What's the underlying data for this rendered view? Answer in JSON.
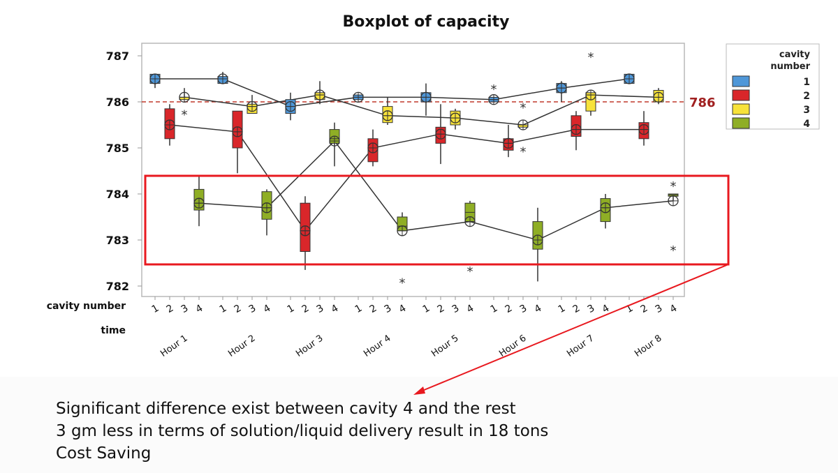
{
  "chart_data": {
    "type": "boxplot",
    "title": "Boxplot of capacity",
    "ylim": [
      782,
      787.3
    ],
    "yticks": [
      782,
      783,
      784,
      785,
      786,
      787
    ],
    "grid": false,
    "reference_line": {
      "value": 786,
      "label": "786",
      "color": "#c0392b"
    },
    "x_axis_rows": [
      {
        "label": "cavity number",
        "ticks": [
          "1",
          "2",
          "3",
          "4"
        ]
      },
      {
        "label": "time",
        "ticks": [
          "Hour 1",
          "Hour 2",
          "Hour 3",
          "Hour 4",
          "Hour 5",
          "Hour 6",
          "Hour 7",
          "Hour 8"
        ]
      }
    ],
    "legend": {
      "title_line1": "cavity",
      "title_line2": "number",
      "placement": "right",
      "entries": [
        {
          "label": "1",
          "color": "#4f97d8"
        },
        {
          "label": "2",
          "color": "#d9262a"
        },
        {
          "label": "3",
          "color": "#f7e23a"
        },
        {
          "label": "4",
          "color": "#8fae25"
        }
      ]
    },
    "box_stats_order": [
      "min",
      "q1",
      "median",
      "q3",
      "max",
      "mean"
    ],
    "series": [
      {
        "name": "1",
        "boxes": [
          {
            "s": [
              786.3,
              786.4,
              786.5,
              786.6,
              786.6,
              786.5
            ],
            "out": []
          },
          {
            "s": [
              786.4,
              786.4,
              786.5,
              786.55,
              786.65,
              786.5
            ],
            "out": []
          },
          {
            "s": [
              785.6,
              785.75,
              785.9,
              786.05,
              786.2,
              785.9
            ],
            "out": []
          },
          {
            "s": [
              786.05,
              786.05,
              786.1,
              786.15,
              786.15,
              786.1
            ],
            "out": []
          },
          {
            "s": [
              785.7,
              786.0,
              786.1,
              786.2,
              786.4,
              786.1
            ],
            "out": []
          },
          {
            "s": [
              786.0,
              786.0,
              786.05,
              786.1,
              786.1,
              786.05
            ],
            "out": [
              786.3
            ]
          },
          {
            "s": [
              786.0,
              786.2,
              786.3,
              786.4,
              786.45,
              786.3
            ],
            "out": []
          },
          {
            "s": [
              786.4,
              786.4,
              786.5,
              786.6,
              786.6,
              786.5
            ],
            "out": []
          }
        ]
      },
      {
        "name": "2",
        "boxes": [
          {
            "s": [
              785.05,
              785.2,
              785.5,
              785.85,
              785.95,
              785.5
            ],
            "out": []
          },
          {
            "s": [
              784.45,
              785.0,
              785.35,
              785.8,
              785.8,
              785.35
            ],
            "out": []
          },
          {
            "s": [
              782.35,
              782.75,
              783.2,
              783.8,
              783.95,
              783.2
            ],
            "out": []
          },
          {
            "s": [
              784.6,
              784.7,
              785.0,
              785.2,
              785.4,
              785.0
            ],
            "out": []
          },
          {
            "s": [
              784.65,
              785.1,
              785.3,
              785.45,
              785.95,
              785.3
            ],
            "out": []
          },
          {
            "s": [
              784.8,
              784.95,
              785.1,
              785.2,
              785.5,
              785.1
            ],
            "out": []
          },
          {
            "s": [
              784.95,
              785.25,
              785.4,
              785.7,
              785.8,
              785.4
            ],
            "out": []
          },
          {
            "s": [
              785.05,
              785.2,
              785.4,
              785.55,
              785.8,
              785.4
            ],
            "out": []
          }
        ]
      },
      {
        "name": "3",
        "boxes": [
          {
            "s": [
              786.05,
              786.05,
              786.1,
              786.1,
              786.3,
              786.1
            ],
            "out": [
              785.75
            ]
          },
          {
            "s": [
              785.75,
              785.75,
              785.9,
              785.95,
              786.15,
              785.9
            ],
            "out": []
          },
          {
            "s": [
              785.95,
              786.05,
              786.15,
              786.2,
              786.45,
              786.15
            ],
            "out": []
          },
          {
            "s": [
              785.5,
              785.55,
              785.7,
              785.9,
              786.1,
              785.7
            ],
            "out": []
          },
          {
            "s": [
              785.4,
              785.5,
              785.65,
              785.8,
              785.85,
              785.65
            ],
            "out": []
          },
          {
            "s": [
              785.45,
              785.45,
              785.5,
              785.5,
              785.5,
              785.5
            ],
            "out": [
              785.9,
              784.95
            ]
          },
          {
            "s": [
              785.7,
              785.8,
              786.15,
              786.2,
              786.2,
              786.15
            ],
            "out": [
              787.0
            ]
          },
          {
            "s": [
              785.95,
              786.0,
              786.1,
              786.25,
              786.3,
              786.1
            ],
            "out": []
          }
        ]
      },
      {
        "name": "4",
        "boxes": [
          {
            "s": [
              783.3,
              783.65,
              783.8,
              784.1,
              784.4,
              783.8
            ],
            "out": []
          },
          {
            "s": [
              783.1,
              783.45,
              783.7,
              784.05,
              784.1,
              783.7
            ],
            "out": []
          },
          {
            "s": [
              784.6,
              785.1,
              785.2,
              785.4,
              785.55,
              785.15
            ],
            "out": []
          },
          {
            "s": [
              783.2,
              783.2,
              783.3,
              783.5,
              783.6,
              783.2
            ],
            "out": [
              782.1
            ]
          },
          {
            "s": [
              783.4,
              783.4,
              783.6,
              783.8,
              783.85,
              783.4
            ],
            "out": [
              782.35
            ]
          },
          {
            "s": [
              782.1,
              782.8,
              783.0,
              783.4,
              783.7,
              783.0
            ],
            "out": []
          },
          {
            "s": [
              783.25,
              783.4,
              783.7,
              783.9,
              784.0,
              783.7
            ],
            "out": []
          },
          {
            "s": [
              783.85,
              783.95,
              783.98,
              784.0,
              784.0,
              783.85
            ],
            "out": [
              784.2,
              782.8
            ]
          }
        ]
      }
    ],
    "annotation": {
      "type": "highlight-box",
      "covers": "cavity 4",
      "color": "#e8191f"
    }
  },
  "caption": {
    "line1": "Significant difference exist between cavity 4 and the rest",
    "line2": "3 gm less in terms of solution/liquid delivery  result in 18 tons",
    "line3": "Cost Saving"
  }
}
